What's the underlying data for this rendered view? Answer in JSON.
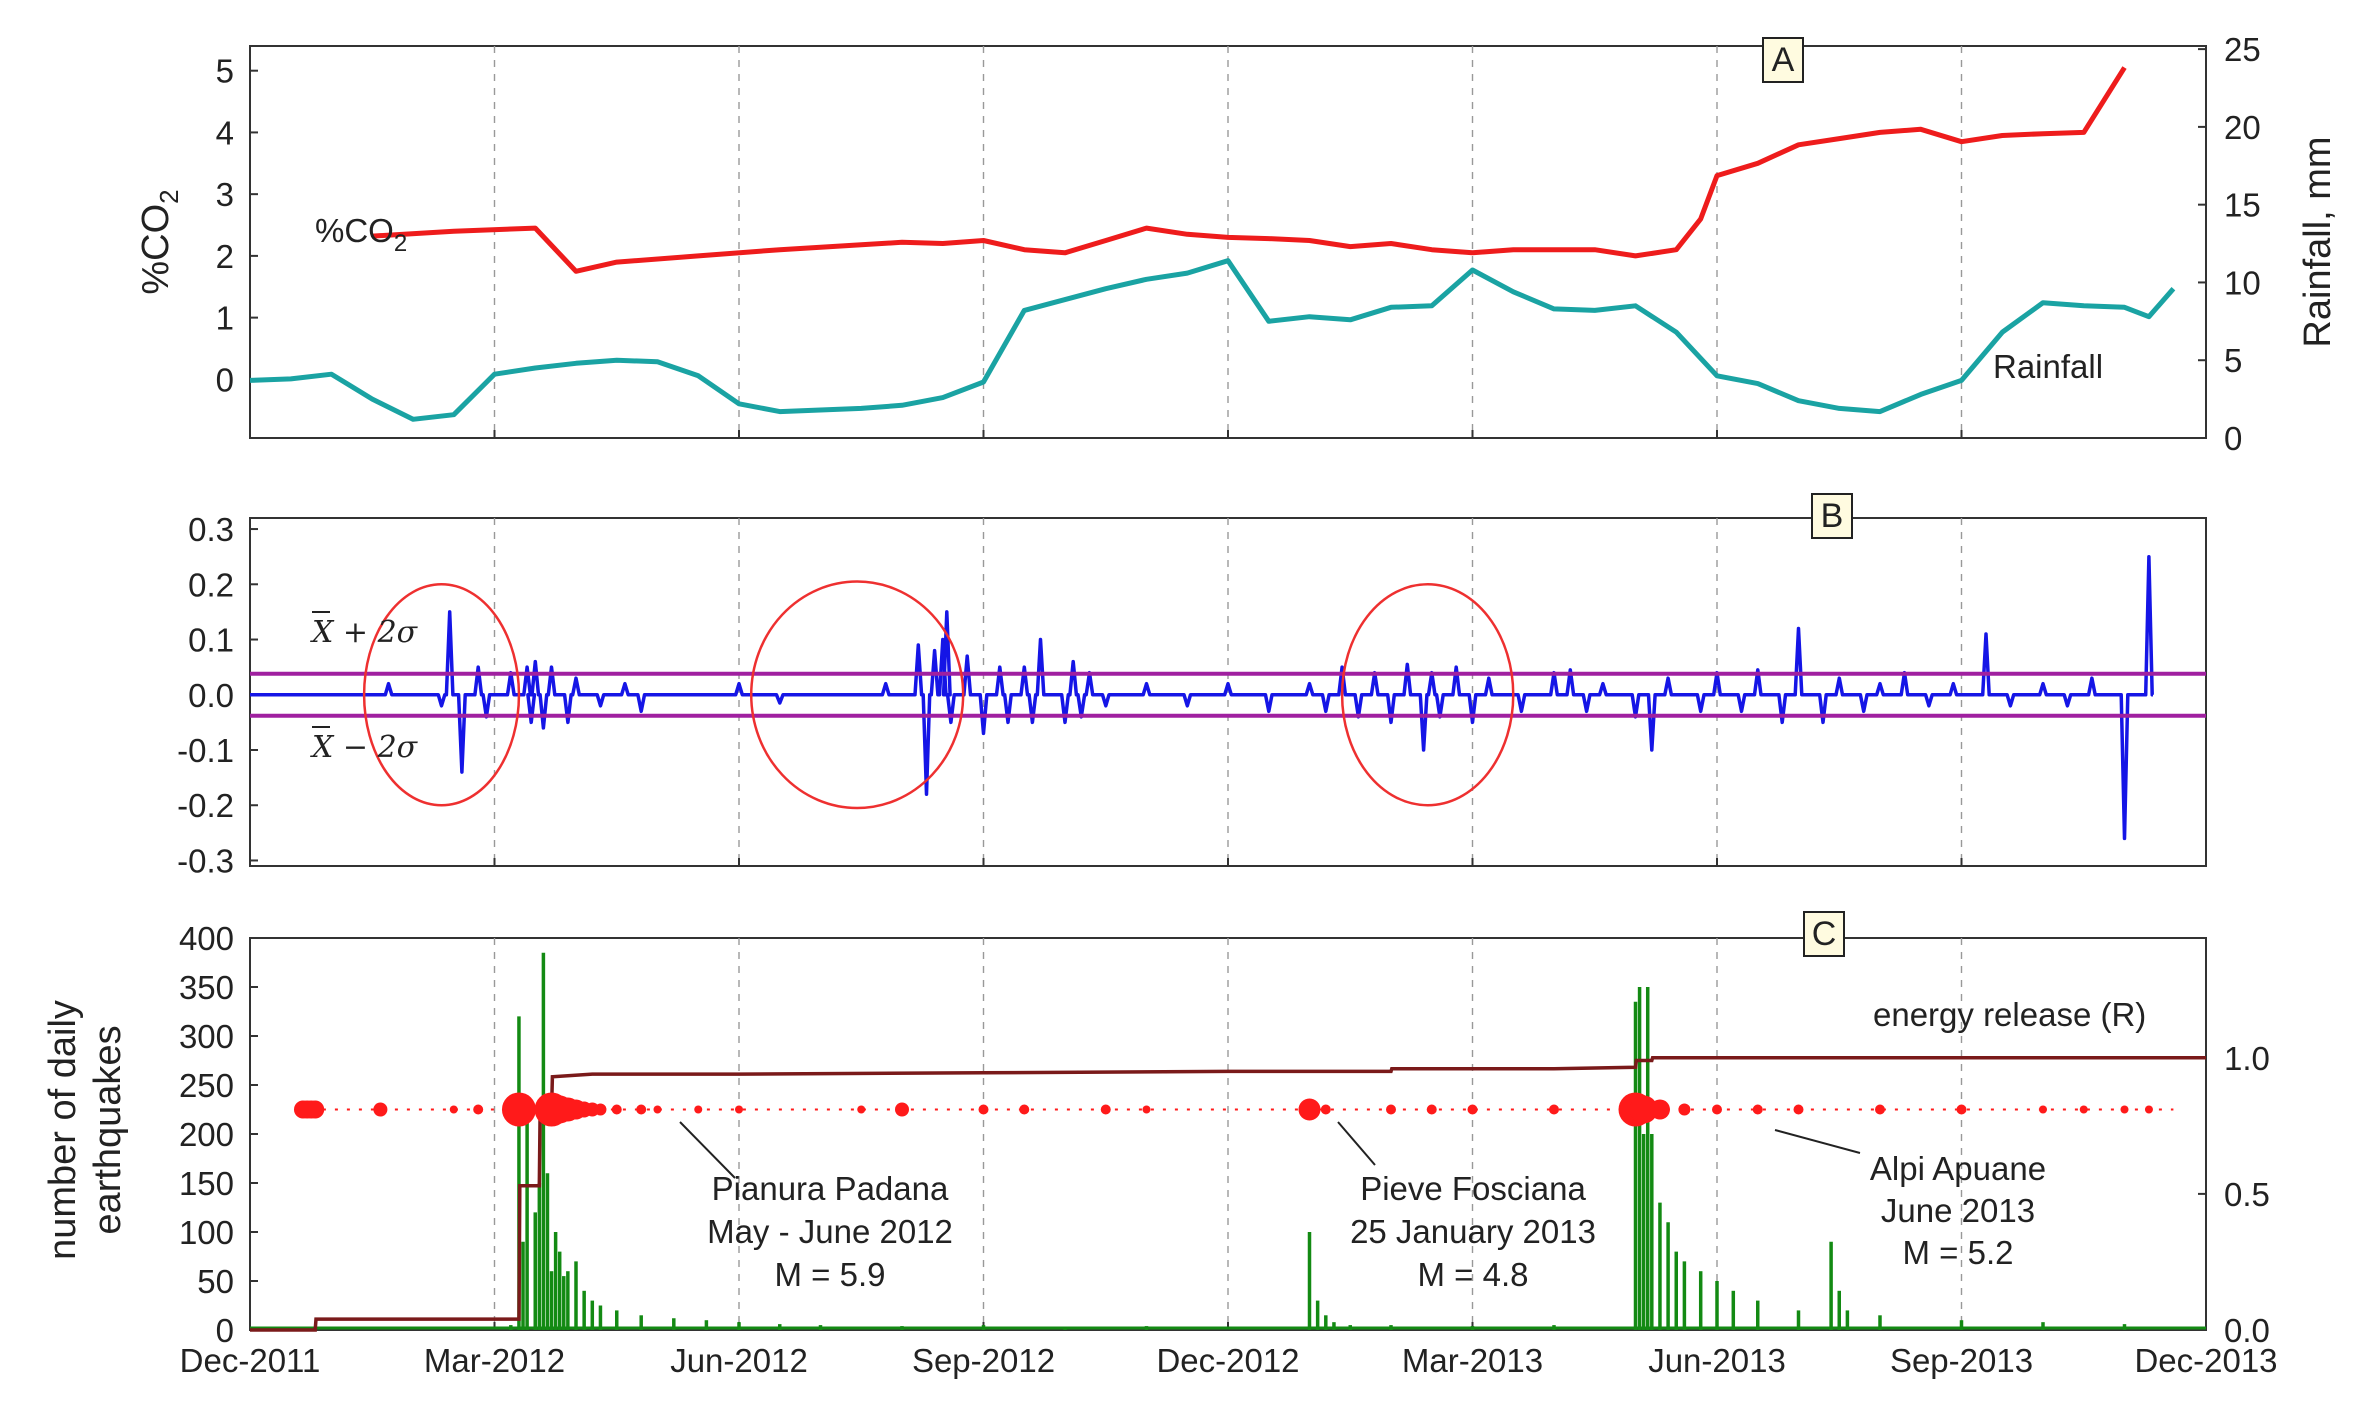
{
  "chart_data": {
    "type": "line",
    "x_ticks": [
      "Dec-2011",
      "Mar-2012",
      "Jun-2012",
      "Sep-2012",
      "Dec-2012",
      "Mar-2013",
      "Jun-2013",
      "Sep-2013",
      "Dec-2013"
    ],
    "x_range": [
      0,
      24
    ],
    "colors": {
      "co2": "#ee1c1c",
      "rainfall": "#1aa3a3",
      "residual": "#1515e6",
      "band": "#a020a0",
      "circle": "#ee3030",
      "quake_bar": "#138a13",
      "quake_dot": "#ff1a1a",
      "energy": "#7a1a1a"
    },
    "panels": [
      {
        "tag": "A",
        "ylabel": "%CO",
        "ylabel_sub": "2",
        "ylim": [
          -0.95,
          5.4
        ],
        "yticks": [
          "0",
          "1",
          "2",
          "3",
          "4",
          "5"
        ],
        "y2label": "Rainfall, mm",
        "y2lim": [
          0,
          25.2
        ],
        "y2ticks": [
          "0",
          "5",
          "10",
          "15",
          "20",
          "25"
        ],
        "series": [
          {
            "name": "%CO2",
            "label": "%CO",
            "label_sub": "2",
            "axis": "left",
            "x": [
              1.5,
              2.5,
              3.5,
              4.0,
              4.5,
              5.5,
              6.5,
              7.5,
              8.0,
              8.5,
              9.0,
              9.5,
              10.0,
              10.5,
              11.0,
              11.5,
              12.0,
              12.5,
              13.0,
              13.5,
              14.0,
              14.5,
              15.0,
              15.5,
              16.0,
              16.5,
              17.0,
              17.5,
              17.8,
              18.0,
              18.5,
              19.0,
              19.5,
              20.0,
              20.5,
              21.0,
              21.5,
              22.0,
              22.5,
              23.0
            ],
            "y": [
              2.32,
              2.4,
              2.45,
              1.75,
              1.9,
              2.0,
              2.1,
              2.18,
              2.22,
              2.2,
              2.25,
              2.1,
              2.05,
              2.25,
              2.45,
              2.35,
              2.3,
              2.28,
              2.25,
              2.15,
              2.2,
              2.1,
              2.05,
              2.1,
              2.1,
              2.1,
              2.0,
              2.1,
              2.6,
              3.3,
              3.5,
              3.8,
              3.9,
              4.0,
              4.05,
              3.85,
              3.95,
              3.98,
              4.0,
              5.05
            ]
          },
          {
            "name": "Rainfall",
            "label": "Rainfall",
            "axis": "right",
            "x": [
              0,
              0.5,
              1.0,
              1.5,
              2.0,
              2.5,
              3.0,
              3.5,
              4.0,
              4.5,
              5.0,
              5.5,
              6.0,
              6.5,
              7.0,
              7.5,
              8.0,
              8.5,
              9.0,
              9.5,
              10.0,
              10.5,
              11.0,
              11.5,
              12.0,
              12.5,
              13.0,
              13.5,
              14.0,
              14.5,
              15.0,
              15.5,
              16.0,
              16.5,
              17.0,
              17.5,
              18.0,
              18.5,
              19.0,
              19.5,
              20.0,
              20.5,
              21.0,
              21.5,
              22.0,
              22.5,
              23.0,
              23.3,
              23.6
            ],
            "y": [
              3.7,
              3.8,
              4.1,
              2.5,
              1.2,
              1.5,
              4.1,
              4.5,
              4.8,
              5.0,
              4.9,
              4.0,
              2.2,
              1.7,
              1.8,
              1.9,
              2.1,
              2.6,
              3.6,
              8.2,
              8.9,
              9.6,
              10.2,
              10.6,
              11.4,
              7.5,
              7.8,
              7.6,
              8.4,
              8.5,
              10.8,
              9.4,
              8.3,
              8.2,
              8.5,
              6.8,
              4.0,
              3.5,
              2.4,
              1.9,
              1.7,
              2.8,
              3.7,
              6.8,
              8.7,
              8.5,
              8.4,
              7.8,
              9.6
            ]
          }
        ]
      },
      {
        "tag": "B",
        "ylim": [
          -0.31,
          0.32
        ],
        "yticks": [
          "0.3",
          "0.2",
          "0.1",
          "0.0",
          "-0.1",
          "-0.2",
          "-0.3"
        ],
        "upper_band": 0.038,
        "lower_band": -0.038,
        "upper_label": "X + 2σ",
        "lower_label": "X − 2σ",
        "series": [
          {
            "name": "residual",
            "spikes_x": [
              1.7,
              2.35,
              2.45,
              2.6,
              2.8,
              2.9,
              3.2,
              3.4,
              3.45,
              3.5,
              3.6,
              3.7,
              3.9,
              4.0,
              4.3,
              4.6,
              4.8,
              6.0,
              6.5,
              7.8,
              8.2,
              8.3,
              8.4,
              8.5,
              8.55,
              8.6,
              8.8,
              9.0,
              9.2,
              9.3,
              9.5,
              9.6,
              9.7,
              10.0,
              10.1,
              10.2,
              10.3,
              10.5,
              11.0,
              11.5,
              12.0,
              12.5,
              13.0,
              13.2,
              13.4,
              13.6,
              13.8,
              14.0,
              14.2,
              14.4,
              14.5,
              14.6,
              14.8,
              15.0,
              15.2,
              15.6,
              16.0,
              16.2,
              16.4,
              16.6,
              17.0,
              17.2,
              17.4,
              17.8,
              18.0,
              18.3,
              18.5,
              18.8,
              19.0,
              19.3,
              19.5,
              19.8,
              20.0,
              20.3,
              20.6,
              20.9,
              21.3,
              21.6,
              22.0,
              22.3,
              22.6,
              22.7,
              23.0,
              23.3
            ],
            "spikes_y": [
              0.02,
              -0.02,
              0.15,
              -0.14,
              0.05,
              -0.04,
              0.04,
              0.05,
              -0.05,
              0.06,
              -0.06,
              0.05,
              -0.05,
              0.03,
              -0.02,
              0.02,
              -0.03,
              0.02,
              -0.015,
              0.02,
              0.09,
              -0.18,
              0.08,
              0.1,
              0.15,
              -0.05,
              0.07,
              -0.07,
              0.05,
              -0.05,
              0.05,
              -0.05,
              0.1,
              -0.05,
              0.06,
              -0.04,
              0.04,
              -0.02,
              0.02,
              -0.02,
              0.02,
              -0.03,
              0.02,
              -0.03,
              0.05,
              -0.04,
              0.04,
              -0.05,
              0.055,
              -0.1,
              0.04,
              -0.04,
              0.05,
              -0.05,
              0.03,
              -0.03,
              0.04,
              0.045,
              -0.03,
              0.02,
              -0.04,
              -0.1,
              0.03,
              -0.03,
              0.04,
              -0.03,
              0.045,
              -0.05,
              0.12,
              -0.05,
              0.03,
              -0.03,
              0.02,
              0.04,
              -0.02,
              0.02,
              0.11,
              -0.02,
              0.02,
              -0.02,
              0.03,
              0.0,
              -0.26,
              0.25
            ]
          }
        ]
      },
      {
        "tag": "C",
        "ylabel": "number of daily earthquakes",
        "ylabel_lines": [
          "number of daily",
          "earthquakes"
        ],
        "ylim": [
          0,
          400
        ],
        "yticks": [
          "0",
          "50",
          "100",
          "150",
          "200",
          "250",
          "300",
          "350",
          "400"
        ],
        "y2lim": [
          0,
          1.44
        ],
        "y2ticks": [
          "0.0",
          "0.5",
          "1.0"
        ],
        "energy_label": "energy release (R)",
        "energy": {
          "x": [
            0,
            0.8,
            0.81,
            3.3,
            3.31,
            3.55,
            3.56,
            3.7,
            3.71,
            4.2,
            6.0,
            9.0,
            12.0,
            14.0,
            14.01,
            16.0,
            17.0,
            17.0,
            17.01,
            17.2,
            17.21,
            24.0
          ],
          "y": [
            0.0,
            0.0,
            0.04,
            0.04,
            0.53,
            0.53,
            0.8,
            0.8,
            0.93,
            0.94,
            0.94,
            0.945,
            0.95,
            0.95,
            0.96,
            0.96,
            0.965,
            0.965,
            0.99,
            0.99,
            1.0,
            1.0
          ]
        },
        "quake_bars": {
          "x": [
            3.2,
            3.3,
            3.35,
            3.4,
            3.5,
            3.55,
            3.6,
            3.65,
            3.7,
            3.75,
            3.8,
            3.85,
            3.9,
            4.0,
            4.1,
            4.2,
            4.3,
            4.5,
            4.8,
            5.2,
            5.6,
            6.0,
            6.5,
            7.0,
            8.0,
            9.0,
            10.0,
            11.0,
            13.0,
            13.1,
            13.2,
            13.3,
            13.5,
            14.0,
            15.0,
            16.0,
            17.0,
            17.05,
            17.1,
            17.15,
            17.2,
            17.3,
            17.4,
            17.5,
            17.6,
            17.8,
            18.0,
            18.2,
            18.5,
            19.0,
            19.4,
            19.5,
            19.6,
            20.0,
            21.0,
            22.0,
            23.0
          ],
          "y": [
            5,
            320,
            90,
            230,
            120,
            150,
            385,
            160,
            60,
            100,
            80,
            55,
            60,
            70,
            40,
            30,
            25,
            20,
            15,
            12,
            10,
            8,
            6,
            5,
            4,
            5,
            3,
            4,
            100,
            30,
            15,
            8,
            5,
            5,
            4,
            5,
            335,
            350,
            200,
            350,
            200,
            130,
            110,
            80,
            70,
            60,
            50,
            40,
            30,
            20,
            90,
            40,
            20,
            15,
            10,
            8,
            6
          ]
        },
        "dot_level": 225,
        "quake_dots": {
          "x": [
            0.65,
            0.7,
            0.75,
            0.8,
            1.6,
            2.5,
            2.8,
            3.3,
            3.7,
            3.8,
            3.9,
            4.0,
            4.1,
            4.2,
            4.3,
            4.5,
            4.8,
            5.0,
            5.5,
            6.0,
            7.5,
            8.0,
            9.0,
            9.5,
            10.5,
            11.0,
            13.0,
            13.2,
            14.0,
            14.5,
            15.0,
            16.0,
            17.0,
            17.1,
            17.3,
            17.6,
            18.0,
            18.5,
            19.0,
            20.0,
            21.0,
            22.0,
            22.5,
            23.0,
            23.3
          ],
          "r": [
            9,
            9,
            9,
            9,
            7,
            4,
            5,
            17,
            17,
            14,
            12,
            10,
            8,
            7,
            6,
            5,
            5,
            4,
            4,
            4,
            4,
            7,
            5,
            5,
            5,
            4,
            11,
            5,
            5,
            5,
            5,
            5,
            17,
            14,
            10,
            6,
            5,
            5,
            5,
            5,
            5,
            4,
            4,
            4,
            4
          ]
        },
        "annotations": [
          {
            "lines": [
              "Pianura Padana",
              "May - June 2012",
              "M = 5.9"
            ]
          },
          {
            "lines": [
              "Pieve Fosciana",
              "25 January 2013",
              "M = 4.8"
            ]
          },
          {
            "lines": [
              "Alpi Apuane",
              "June 2013",
              "M = 5.2"
            ]
          }
        ]
      }
    ]
  }
}
